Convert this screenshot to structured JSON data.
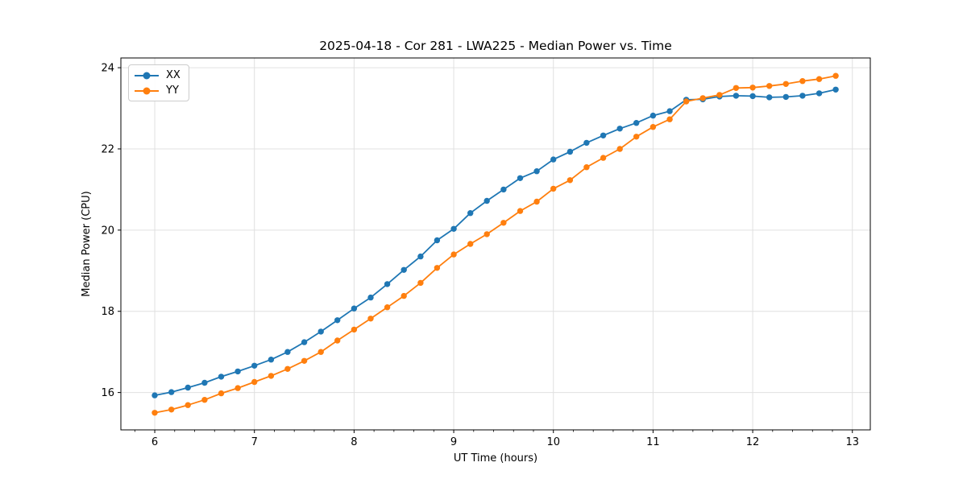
{
  "chart_data": {
    "type": "line",
    "title": "2025-04-18 - Cor 281 - LWA225 - Median Power vs. Time",
    "xlabel": "UT Time (hours)",
    "ylabel": "Median Power (CPU)",
    "xlim": [
      5.66,
      13.18
    ],
    "ylim": [
      15.08,
      24.24
    ],
    "xticks": [
      6,
      7,
      8,
      9,
      10,
      11,
      12,
      13
    ],
    "yticks": [
      16,
      18,
      20,
      22,
      24
    ],
    "x_minor_tick_step": 0.2,
    "grid": true,
    "grid_color": "#e0e0e0",
    "legend_position": "upper left",
    "marker": "circle",
    "x": [
      6.0,
      6.167,
      6.333,
      6.5,
      6.667,
      6.833,
      7.0,
      7.167,
      7.333,
      7.5,
      7.667,
      7.833,
      8.0,
      8.167,
      8.333,
      8.5,
      8.667,
      8.833,
      9.0,
      9.167,
      9.333,
      9.5,
      9.667,
      9.833,
      10.0,
      10.167,
      10.333,
      10.5,
      10.667,
      10.833,
      11.0,
      11.167,
      11.333,
      11.5,
      11.667,
      11.833,
      12.0,
      12.167,
      12.333,
      12.5,
      12.667,
      12.833
    ],
    "series": [
      {
        "name": "XX",
        "color": "#1f77b4",
        "values": [
          15.93,
          16.01,
          16.12,
          16.24,
          16.39,
          16.52,
          16.66,
          16.81,
          17.0,
          17.24,
          17.5,
          17.78,
          18.07,
          18.34,
          18.67,
          19.02,
          19.35,
          19.75,
          20.03,
          20.42,
          20.72,
          21.0,
          21.28,
          21.45,
          21.74,
          21.93,
          22.15,
          22.33,
          22.5,
          22.64,
          22.82,
          22.93,
          23.21,
          23.22,
          23.29,
          23.31,
          23.3,
          23.27,
          23.28,
          23.31,
          23.37,
          23.46
        ]
      },
      {
        "name": "YY",
        "color": "#ff7f0e",
        "values": [
          15.5,
          15.58,
          15.69,
          15.82,
          15.98,
          16.11,
          16.26,
          16.41,
          16.58,
          16.78,
          17.0,
          17.28,
          17.55,
          17.82,
          18.1,
          18.38,
          18.7,
          19.07,
          19.4,
          19.66,
          19.9,
          20.18,
          20.47,
          20.7,
          21.02,
          21.23,
          21.55,
          21.78,
          22.0,
          22.3,
          22.54,
          22.73,
          23.17,
          23.25,
          23.33,
          23.5,
          23.51,
          23.55,
          23.6,
          23.67,
          23.72,
          23.8
        ]
      }
    ]
  }
}
